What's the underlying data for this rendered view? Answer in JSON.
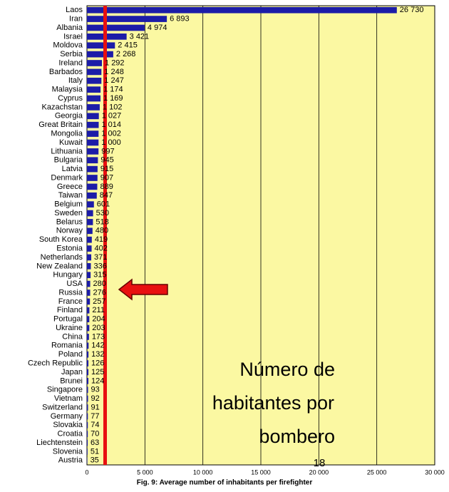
{
  "chart_data": {
    "type": "bar",
    "orientation": "horizontal",
    "categories": [
      "Laos",
      "Iran",
      "Albania",
      "Israel",
      "Moldova",
      "Serbia",
      "Ireland",
      "Barbados",
      "Italy",
      "Malaysia",
      "Cyprus",
      "Kazachstan",
      "Georgia",
      "Great Britain",
      "Mongolia",
      "Kuwait",
      "Lithuania",
      "Bulgaria",
      "Latvia",
      "Denmark",
      "Greece",
      "Taiwan",
      "Belgium",
      "Sweden",
      "Belarus",
      "Norway",
      "South Korea",
      "Estonia",
      "Netherlands",
      "New Zealand",
      "Hungary",
      "USA",
      "Russia",
      "France",
      "Finland",
      "Portugal",
      "Ukraine",
      "China",
      "Romania",
      "Poland",
      "Czech Republic",
      "Japan",
      "Brunei",
      "Singapore",
      "Vietnam",
      "Switzerland",
      "Germany",
      "Slovakia",
      "Croatia",
      "Liechtenstein",
      "Slovenia",
      "Austria"
    ],
    "values": [
      26730,
      6893,
      4974,
      3421,
      2415,
      2268,
      1292,
      1248,
      1247,
      1174,
      1169,
      1102,
      1027,
      1014,
      1002,
      1000,
      997,
      945,
      915,
      907,
      889,
      847,
      601,
      530,
      518,
      480,
      419,
      402,
      371,
      336,
      315,
      280,
      276,
      257,
      211,
      204,
      203,
      173,
      142,
      132,
      126,
      125,
      124,
      93,
      92,
      91,
      77,
      74,
      70,
      63,
      51,
      35
    ],
    "value_labels": [
      "26 730",
      "6 893",
      "4 974",
      "3 421",
      "2 415",
      "2 268",
      "1 292",
      "1 248",
      "1 247",
      "1 174",
      "1 169",
      "1 102",
      "1 027",
      "1 014",
      "1 002",
      "1 000",
      "997",
      "945",
      "915",
      "907",
      "889",
      "847",
      "601",
      "530",
      "518",
      "480",
      "419",
      "402",
      "371",
      "336",
      "315",
      "280",
      "276",
      "257",
      "211",
      "204",
      "203",
      "173",
      "142",
      "132",
      "126",
      "125",
      "124",
      "93",
      "92",
      "91",
      "77",
      "74",
      "70",
      "63",
      "51",
      "35"
    ],
    "color": "#1c1ca8",
    "xlim": [
      0,
      30000
    ],
    "xticks": [
      0,
      {
        "value": 5000,
        "label": "5 000"
      },
      {
        "value": 10000,
        "label": "10 000"
      },
      {
        "value": 15000,
        "label": "15 000"
      },
      {
        "value": 20000,
        "label": "20 000"
      },
      {
        "value": 25000,
        "label": "25 000"
      },
      {
        "value": 30000,
        "label": "30 000"
      }
    ],
    "grid": true,
    "caption": "Fig. 9: Average number of inhabitants per firefighter",
    "overlay_text": [
      "Número de",
      "habitantes por",
      "bombero"
    ],
    "page_number": "18"
  }
}
